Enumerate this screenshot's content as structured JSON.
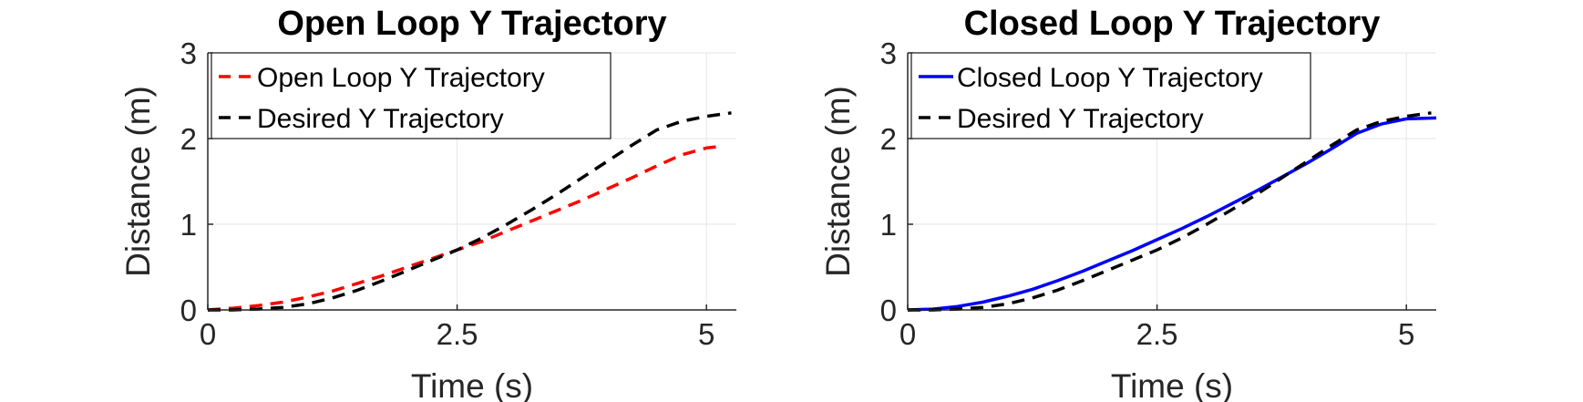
{
  "chart_data": [
    {
      "type": "line",
      "title": "Open Loop Y Trajectory",
      "xlabel": "Time (s)",
      "ylabel": "Distance (m)",
      "xlim": [
        0,
        5.3
      ],
      "ylim": [
        0,
        3
      ],
      "xticks": [
        "0",
        "2.5",
        "5"
      ],
      "yticks": [
        "0",
        "1",
        "2",
        "3"
      ],
      "grid": true,
      "legend_position": "top-left",
      "series": [
        {
          "name": "Open Loop Y Trajectory",
          "color": "#ff0000",
          "style": "dashed",
          "x": [
            0,
            0.25,
            0.5,
            0.75,
            1.0,
            1.25,
            1.5,
            1.75,
            2.0,
            2.25,
            2.5,
            2.75,
            3.0,
            3.25,
            3.5,
            3.75,
            4.0,
            4.25,
            4.5,
            4.75,
            5.0,
            5.15
          ],
          "y": [
            0.0,
            0.02,
            0.05,
            0.09,
            0.15,
            0.22,
            0.31,
            0.4,
            0.5,
            0.6,
            0.7,
            0.8,
            0.92,
            1.04,
            1.16,
            1.28,
            1.41,
            1.54,
            1.68,
            1.81,
            1.89,
            1.91
          ]
        },
        {
          "name": "Desired Y Trajectory",
          "color": "#000000",
          "style": "dashed",
          "x": [
            0,
            0.25,
            0.5,
            0.75,
            1.0,
            1.25,
            1.5,
            1.75,
            2.0,
            2.25,
            2.5,
            2.75,
            3.0,
            3.25,
            3.5,
            3.75,
            4.0,
            4.25,
            4.5,
            4.75,
            5.0,
            5.25
          ],
          "y": [
            0.0,
            0.0,
            0.01,
            0.03,
            0.07,
            0.14,
            0.23,
            0.34,
            0.46,
            0.58,
            0.7,
            0.84,
            1.0,
            1.17,
            1.35,
            1.54,
            1.73,
            1.92,
            2.1,
            2.2,
            2.26,
            2.3
          ]
        }
      ]
    },
    {
      "type": "line",
      "title": "Closed Loop Y Trajectory",
      "xlabel": "Time (s)",
      "ylabel": "Distance (m)",
      "xlim": [
        0,
        5.3
      ],
      "ylim": [
        0,
        3
      ],
      "xticks": [
        "0",
        "2.5",
        "5"
      ],
      "yticks": [
        "0",
        "1",
        "2",
        "3"
      ],
      "grid": true,
      "legend_position": "top-left",
      "series": [
        {
          "name": "Closed Loop Y Trajectory",
          "color": "#0000ff",
          "style": "solid",
          "x": [
            0,
            0.25,
            0.5,
            0.75,
            1.0,
            1.25,
            1.5,
            1.75,
            2.0,
            2.25,
            2.5,
            2.75,
            3.0,
            3.25,
            3.5,
            3.75,
            4.0,
            4.25,
            4.5,
            4.75,
            5.0,
            5.3
          ],
          "y": [
            0.0,
            0.01,
            0.04,
            0.09,
            0.16,
            0.24,
            0.34,
            0.45,
            0.57,
            0.69,
            0.82,
            0.95,
            1.09,
            1.24,
            1.39,
            1.55,
            1.71,
            1.88,
            2.06,
            2.17,
            2.23,
            2.24
          ]
        },
        {
          "name": "Desired Y Trajectory",
          "color": "#000000",
          "style": "dashed",
          "x": [
            0,
            0.25,
            0.5,
            0.75,
            1.0,
            1.25,
            1.5,
            1.75,
            2.0,
            2.25,
            2.5,
            2.75,
            3.0,
            3.25,
            3.5,
            3.75,
            4.0,
            4.25,
            4.5,
            4.75,
            5.0,
            5.25
          ],
          "y": [
            0.0,
            0.0,
            0.01,
            0.03,
            0.07,
            0.14,
            0.23,
            0.34,
            0.46,
            0.58,
            0.7,
            0.84,
            1.0,
            1.17,
            1.35,
            1.54,
            1.73,
            1.92,
            2.1,
            2.2,
            2.26,
            2.3
          ]
        }
      ]
    }
  ]
}
